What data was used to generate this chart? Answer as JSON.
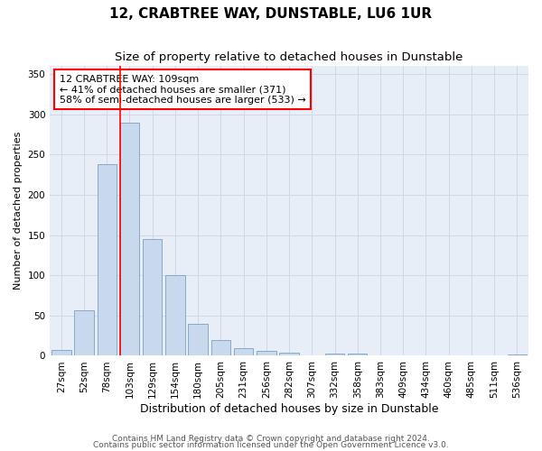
{
  "title": "12, CRABTREE WAY, DUNSTABLE, LU6 1UR",
  "subtitle": "Size of property relative to detached houses in Dunstable",
  "xlabel": "Distribution of detached houses by size in Dunstable",
  "ylabel": "Number of detached properties",
  "bar_labels": [
    "27sqm",
    "52sqm",
    "78sqm",
    "103sqm",
    "129sqm",
    "154sqm",
    "180sqm",
    "205sqm",
    "231sqm",
    "256sqm",
    "282sqm",
    "307sqm",
    "332sqm",
    "358sqm",
    "383sqm",
    "409sqm",
    "434sqm",
    "460sqm",
    "485sqm",
    "511sqm",
    "536sqm"
  ],
  "bar_values": [
    7,
    57,
    238,
    290,
    145,
    100,
    40,
    20,
    10,
    6,
    4,
    0,
    3,
    3,
    0,
    0,
    0,
    0,
    0,
    0,
    2
  ],
  "bar_color": "#c9d9ed",
  "bar_edge_color": "#7a9fc0",
  "vline_color": "red",
  "vline_index": 3,
  "annotation_text": "12 CRABTREE WAY: 109sqm\n← 41% of detached houses are smaller (371)\n58% of semi-detached houses are larger (533) →",
  "annotation_box_color": "white",
  "annotation_box_edge": "red",
  "ylim": [
    0,
    360
  ],
  "yticks": [
    0,
    50,
    100,
    150,
    200,
    250,
    300,
    350
  ],
  "grid_color": "#d0d8e8",
  "bg_color": "#e8eef8",
  "footer1": "Contains HM Land Registry data © Crown copyright and database right 2024.",
  "footer2": "Contains public sector information licensed under the Open Government Licence v3.0.",
  "title_fontsize": 11,
  "subtitle_fontsize": 9.5,
  "xlabel_fontsize": 9,
  "ylabel_fontsize": 8,
  "tick_fontsize": 7.5,
  "annotation_fontsize": 8,
  "footer_fontsize": 6.5
}
